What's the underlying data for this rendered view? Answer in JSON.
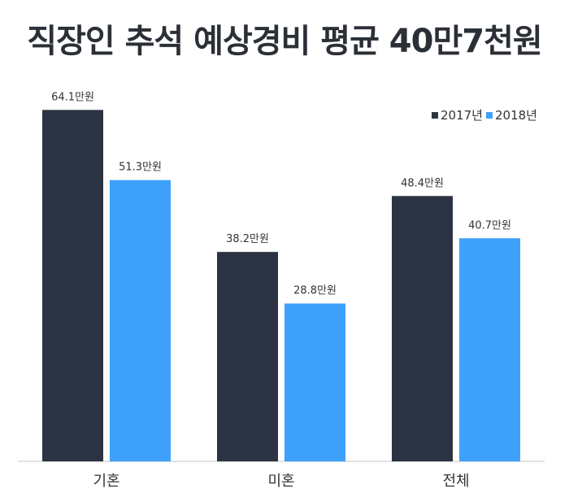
{
  "chart_data": {
    "type": "bar",
    "title": "직장인 추석 예상경비 평균 40만7천원",
    "categories": [
      "기혼",
      "미혼",
      "전체"
    ],
    "series": [
      {
        "name": "2017년",
        "color": "#2c3443",
        "values": [
          64.1,
          38.2,
          48.4
        ],
        "labels": [
          "64.1만원",
          "38.2만원",
          "48.4만원"
        ]
      },
      {
        "name": "2018년",
        "color": "#3ea1fb",
        "values": [
          51.3,
          28.8,
          40.7
        ],
        "labels": [
          "51.3만원",
          "28.8만원",
          "40.7만원"
        ]
      }
    ],
    "ylim": [
      0,
      70
    ],
    "legend_position": "top-right",
    "grid": false
  }
}
